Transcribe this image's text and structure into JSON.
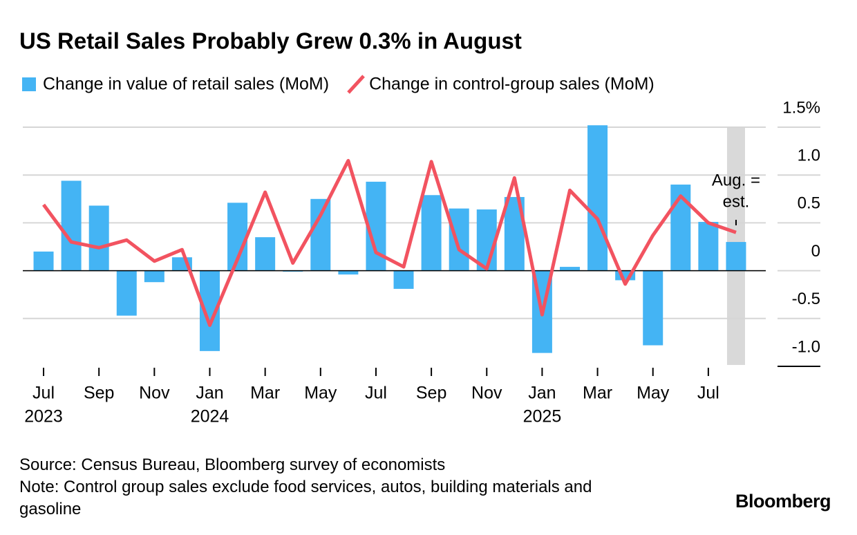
{
  "chart_data": {
    "type": "bar-line",
    "title": "US Retail Sales Probably Grew 0.3% in August",
    "categories": [
      "Jul",
      null,
      "Sep",
      null,
      "Nov",
      null,
      "Jan",
      null,
      "Mar",
      null,
      "May",
      null,
      "Jul",
      null,
      "Sep",
      null,
      "Nov",
      null,
      "Jan",
      null,
      "Mar",
      null,
      "May",
      null,
      "Jul",
      null
    ],
    "category_years": [
      "2023",
      null,
      null,
      null,
      null,
      null,
      "2024",
      null,
      null,
      null,
      null,
      null,
      null,
      null,
      null,
      null,
      null,
      null,
      "2025",
      null,
      null,
      null,
      null,
      null,
      null,
      null
    ],
    "series": [
      {
        "name": "Change in value of retail sales (MoM)",
        "kind": "bar",
        "color": "#44b4f4",
        "values": [
          0.2,
          0.94,
          0.68,
          -0.47,
          -0.12,
          0.14,
          -0.84,
          0.71,
          0.35,
          -0.01,
          0.75,
          -0.04,
          0.93,
          -0.19,
          0.79,
          0.65,
          0.64,
          0.77,
          -0.86,
          0.04,
          1.52,
          -0.1,
          -0.78,
          0.9,
          0.51,
          0.3
        ]
      },
      {
        "name": "Change in control-group sales (MoM)",
        "kind": "line",
        "color": "#f25360",
        "values": [
          0.69,
          0.3,
          0.24,
          0.32,
          0.1,
          0.22,
          -0.57,
          0.12,
          0.82,
          0.08,
          0.58,
          1.15,
          0.19,
          0.04,
          1.14,
          0.22,
          0.02,
          0.97,
          -0.46,
          0.84,
          0.54,
          -0.14,
          0.37,
          0.78,
          0.5,
          0.4
        ]
      }
    ],
    "ylim": [
      -1.0,
      1.5
    ],
    "yticks": [
      {
        "value": 1.5,
        "label": "1.5%"
      },
      {
        "value": 1.0,
        "label": "1.0"
      },
      0.5,
      0,
      -0.5,
      {
        "value": -1.0,
        "label": "-1.0"
      }
    ],
    "grid": true,
    "shaded_category": 25,
    "annotation": [
      "Aug. =",
      "est."
    ]
  },
  "footer": {
    "source": "Source: Census Bureau, Bloomberg survey of economists",
    "note": "Note: Control group sales exclude food services, autos, building materials and gasoline",
    "brand": "Bloomberg"
  }
}
